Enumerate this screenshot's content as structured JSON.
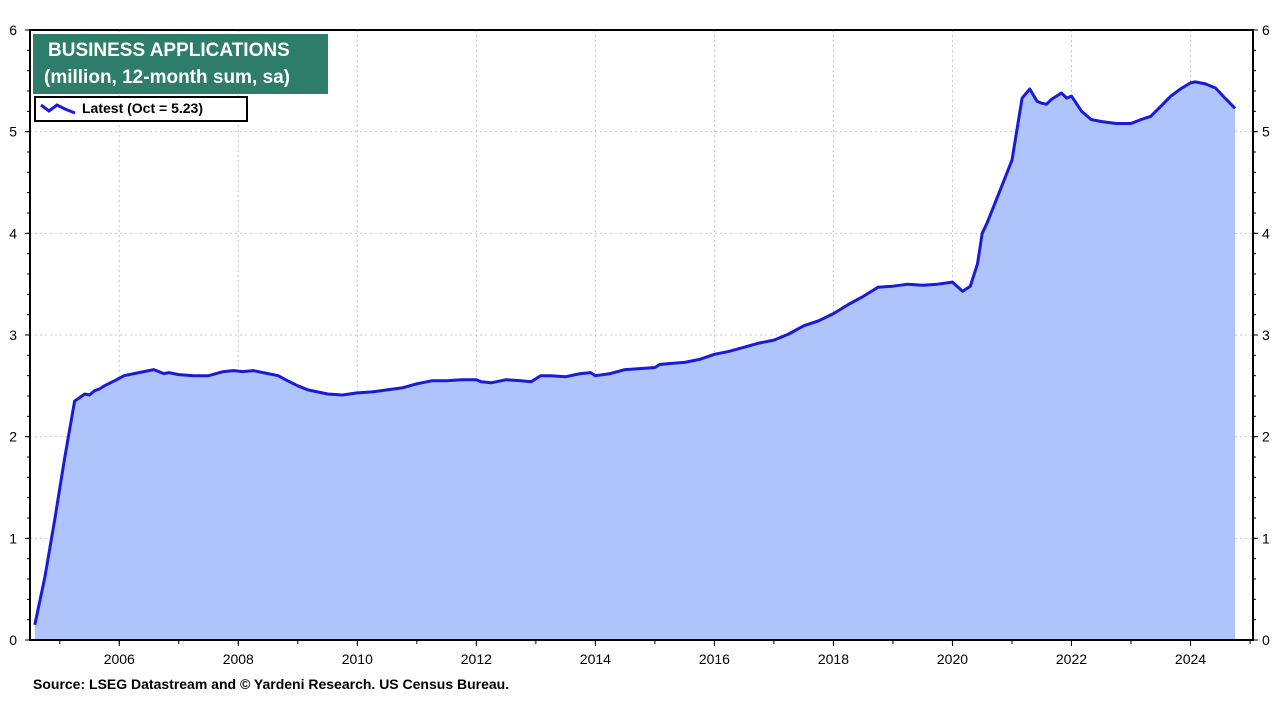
{
  "chart_data": {
    "type": "area",
    "title": "BUSINESS APPLICATIONS",
    "subtitle": "(million, 12-month sum, sa)",
    "legend": [
      {
        "label": "Latest (Oct = 5.23)",
        "color": "#1a1adc"
      }
    ],
    "legend_position": "top-left",
    "source": "Source: LSEG Datastream and © Yardeni Research. US Census Bureau.",
    "xlim": [
      2004.5,
      2025.05
    ],
    "ylim": [
      0,
      6
    ],
    "x_ticks": [
      2006,
      2008,
      2010,
      2012,
      2014,
      2016,
      2018,
      2020,
      2022,
      2024
    ],
    "y_ticks": [
      0,
      1,
      2,
      3,
      4,
      5,
      6
    ],
    "grid": true,
    "line_color": "#1a1adc",
    "fill_color": "#aec4fa",
    "series": [
      {
        "name": "Latest (Oct = 5.23)",
        "x": [
          2004.58,
          2004.75,
          2004.92,
          2005.08,
          2005.25,
          2005.42,
          2005.5,
          2005.58,
          2005.67,
          2005.75,
          2005.92,
          2006.08,
          2006.33,
          2006.58,
          2006.75,
          2006.83,
          2007.0,
          2007.25,
          2007.5,
          2007.75,
          2007.92,
          2008.08,
          2008.25,
          2008.5,
          2008.67,
          2008.83,
          2009.0,
          2009.17,
          2009.5,
          2009.75,
          2010.0,
          2010.25,
          2010.5,
          2010.75,
          2011.0,
          2011.25,
          2011.5,
          2011.75,
          2012.0,
          2012.08,
          2012.25,
          2012.5,
          2012.75,
          2012.92,
          2013.08,
          2013.25,
          2013.5,
          2013.75,
          2013.92,
          2014.0,
          2014.25,
          2014.5,
          2014.75,
          2015.0,
          2015.08,
          2015.25,
          2015.5,
          2015.75,
          2016.0,
          2016.25,
          2016.5,
          2016.75,
          2017.0,
          2017.25,
          2017.5,
          2017.75,
          2018.0,
          2018.25,
          2018.5,
          2018.75,
          2019.0,
          2019.25,
          2019.5,
          2019.75,
          2020.0,
          2020.17,
          2020.3,
          2020.42,
          2020.5,
          2020.58,
          2020.75,
          2020.92,
          2021.0,
          2021.17,
          2021.3,
          2021.42,
          2021.5,
          2021.58,
          2021.67,
          2021.83,
          2021.92,
          2022.0,
          2022.17,
          2022.33,
          2022.5,
          2022.75,
          2023.0,
          2023.17,
          2023.33,
          2023.5,
          2023.67,
          2023.83,
          2024.0,
          2024.08,
          2024.25,
          2024.42,
          2024.58,
          2024.75
        ],
        "values": [
          0.15,
          0.62,
          1.2,
          1.78,
          2.35,
          2.42,
          2.41,
          2.45,
          2.47,
          2.5,
          2.55,
          2.6,
          2.63,
          2.66,
          2.62,
          2.63,
          2.61,
          2.6,
          2.6,
          2.64,
          2.65,
          2.64,
          2.65,
          2.62,
          2.6,
          2.55,
          2.5,
          2.46,
          2.42,
          2.41,
          2.43,
          2.44,
          2.46,
          2.48,
          2.52,
          2.55,
          2.55,
          2.56,
          2.56,
          2.54,
          2.53,
          2.56,
          2.55,
          2.54,
          2.6,
          2.6,
          2.59,
          2.62,
          2.63,
          2.6,
          2.62,
          2.66,
          2.67,
          2.68,
          2.71,
          2.72,
          2.73,
          2.76,
          2.81,
          2.84,
          2.88,
          2.92,
          2.95,
          3.01,
          3.09,
          3.14,
          3.21,
          3.3,
          3.38,
          3.47,
          3.48,
          3.5,
          3.49,
          3.5,
          3.52,
          3.43,
          3.48,
          3.7,
          4.0,
          4.1,
          4.35,
          4.6,
          4.72,
          5.33,
          5.42,
          5.3,
          5.28,
          5.27,
          5.32,
          5.38,
          5.33,
          5.35,
          5.2,
          5.12,
          5.1,
          5.08,
          5.08,
          5.12,
          5.15,
          5.25,
          5.35,
          5.42,
          5.48,
          5.49,
          5.47,
          5.43,
          5.33,
          5.23
        ]
      }
    ]
  }
}
